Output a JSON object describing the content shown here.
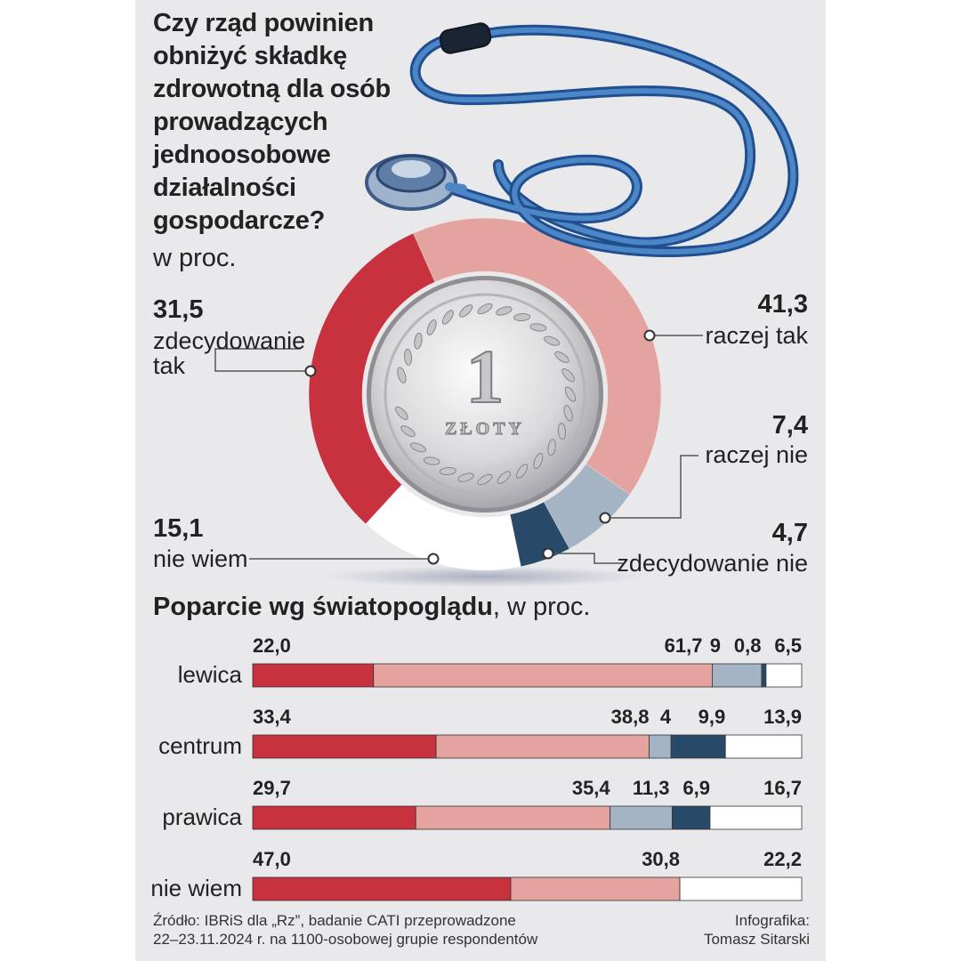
{
  "title": "Czy rząd powinien obniżyć składkę zdrowotną dla osób prowadzących jednoosobowe działalności gospodarcze?",
  "unit": "w proc.",
  "colors": {
    "zdecydowanie_tak": "#c8323f",
    "raczej_tak": "#e4a39f",
    "raczej_nie": "#a5b4c4",
    "zdecydowanie_nie": "#284a68",
    "nie_wiem": "#ffffff"
  },
  "chart_data": [
    {
      "type": "pie",
      "variant": "donut",
      "title": "Czy rząd powinien obniżyć składkę zdrowotną dla osób prowadzących jednoosobowe działalności gospodarcze?",
      "unit": "w proc.",
      "slices": [
        {
          "key": "raczej_tak",
          "label": "raczej tak",
          "value": 41.3,
          "value_text": "41,3"
        },
        {
          "key": "raczej_nie",
          "label": "raczej nie",
          "value": 7.4,
          "value_text": "7,4"
        },
        {
          "key": "zdecydowanie_nie",
          "label": "zdecydowanie nie",
          "value": 4.7,
          "value_text": "4,7"
        },
        {
          "key": "nie_wiem",
          "label": "nie wiem",
          "value": 15.1,
          "value_text": "15,1"
        },
        {
          "key": "zdecydowanie_tak",
          "label": "zdecydowanie tak",
          "label_lines": [
            "zdecydowanie",
            "tak"
          ],
          "value": 31.5,
          "value_text": "31,5"
        }
      ]
    },
    {
      "type": "bar",
      "orientation": "horizontal",
      "stacked": true,
      "title": "Poparcie wg światopoglądu",
      "unit": "w proc.",
      "categories": [
        "lewica",
        "centrum",
        "prawica",
        "nie wiem"
      ],
      "series": [
        {
          "key": "zdecydowanie_tak",
          "name": "zdecydowanie tak",
          "values": [
            22.0,
            33.4,
            29.7,
            47.0
          ],
          "value_texts": [
            "22,0",
            "33,4",
            "29,7",
            "47,0"
          ]
        },
        {
          "key": "raczej_tak",
          "name": "raczej tak",
          "values": [
            61.7,
            38.8,
            35.4,
            30.8
          ],
          "value_texts": [
            "61,7",
            "38,8",
            "35,4",
            "30,8"
          ]
        },
        {
          "key": "raczej_nie",
          "name": "raczej nie",
          "values": [
            9,
            4,
            11.3,
            0
          ],
          "value_texts": [
            "9",
            "4",
            "11,3",
            null
          ]
        },
        {
          "key": "zdecydowanie_nie",
          "name": "zdecydowanie nie",
          "values": [
            0.8,
            9.9,
            6.9,
            0
          ],
          "value_texts": [
            "0,8",
            "9,9",
            "6,9",
            null
          ]
        },
        {
          "key": "nie_wiem",
          "name": "nie wiem",
          "values": [
            6.5,
            13.9,
            16.7,
            22.2
          ],
          "value_texts": [
            "6,5",
            "13,9",
            "16,7",
            "22,2"
          ]
        }
      ]
    }
  ],
  "subtitle": {
    "bold": "Poparcie wg światopoglądu",
    "rest": ", w proc."
  },
  "coin": {
    "denomination": "1",
    "text": "ZŁOTY"
  },
  "source": {
    "line1": "Źródło: IBRiS dla „Rz”, badanie CATI przeprowadzone",
    "line2": "22–23.11.2024 r. na 1100-osobowej grupie respondentów"
  },
  "credit": {
    "line1": "Infografika:",
    "line2": "Tomasz Sitarski"
  }
}
